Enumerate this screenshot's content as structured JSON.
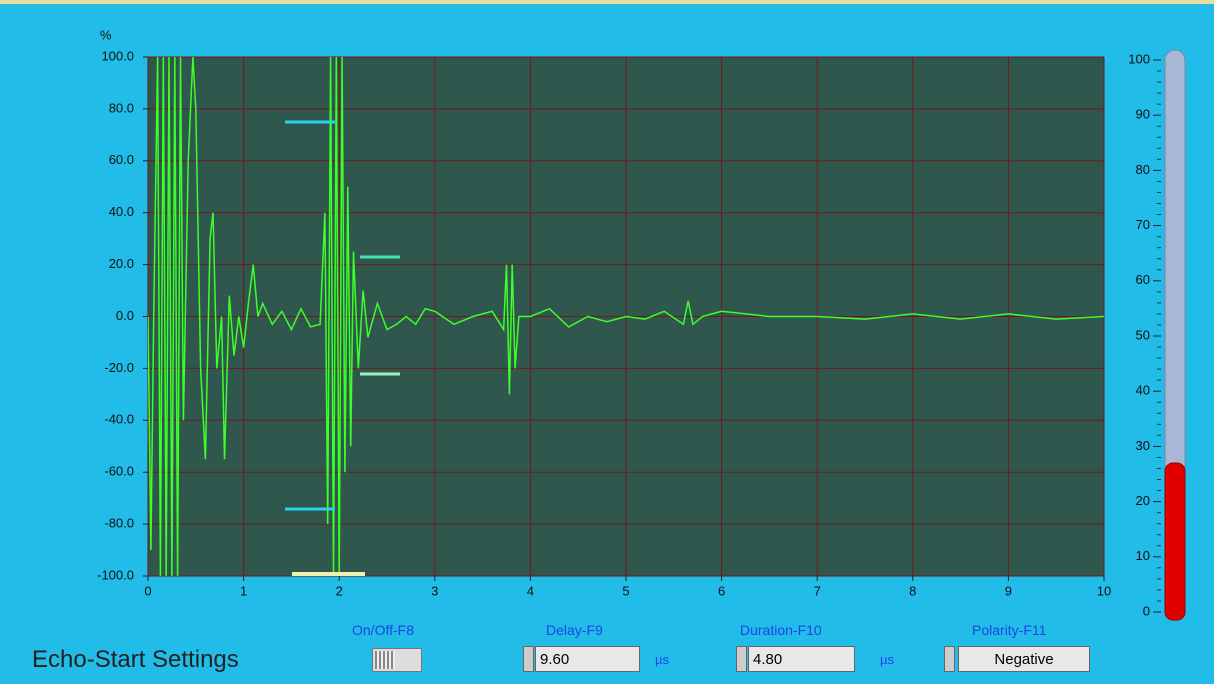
{
  "chart_data": [
    {
      "type": "line",
      "ylabel": "%",
      "x": [
        0,
        0.03,
        0.06,
        0.1,
        0.13,
        0.16,
        0.19,
        0.22,
        0.25,
        0.28,
        0.31,
        0.34,
        0.37,
        0.42,
        0.47,
        0.5,
        0.55,
        0.6,
        0.65,
        0.68,
        0.72,
        0.77,
        0.8,
        0.85,
        0.9,
        0.95,
        1.0,
        1.05,
        1.1,
        1.15,
        1.2,
        1.3,
        1.4,
        1.5,
        1.6,
        1.7,
        1.8,
        1.85,
        1.88,
        1.91,
        1.94,
        1.97,
        2.0,
        2.03,
        2.06,
        2.09,
        2.12,
        2.15,
        2.2,
        2.25,
        2.3,
        2.4,
        2.5,
        2.6,
        2.7,
        2.8,
        2.9,
        3.0,
        3.2,
        3.4,
        3.6,
        3.72,
        3.75,
        3.78,
        3.81,
        3.84,
        3.88,
        4.0,
        4.2,
        4.4,
        4.6,
        4.8,
        5.0,
        5.2,
        5.4,
        5.6,
        5.65,
        5.7,
        5.8,
        6.0,
        6.5,
        7.0,
        7.5,
        8.0,
        8.5,
        9.0,
        9.5,
        10.0
      ],
      "series": [
        {
          "color": "#3cff2a",
          "values": [
            0,
            -90,
            0,
            100,
            -100,
            100,
            -100,
            100,
            -100,
            100,
            -100,
            100,
            -40,
            60,
            100,
            80,
            -20,
            -55,
            30,
            40,
            -20,
            0,
            -55,
            8,
            -15,
            0,
            -12,
            5,
            20,
            0,
            5,
            -3,
            2,
            -5,
            3,
            -4,
            -3,
            40,
            -80,
            100,
            -100,
            100,
            -100,
            100,
            -60,
            50,
            -50,
            25,
            -20,
            10,
            -8,
            5,
            -5,
            -3,
            0,
            -3,
            3,
            2,
            -3,
            0,
            2,
            -5,
            20,
            -30,
            20,
            -20,
            0,
            0,
            3,
            -4,
            0,
            -2,
            0,
            -1,
            2,
            -3,
            6,
            -3,
            0,
            2,
            0,
            0,
            -1,
            1,
            -1,
            1,
            -1,
            0
          ]
        }
      ],
      "xlim": [
        0,
        10
      ],
      "xticks": [
        0,
        1,
        2,
        3,
        4,
        5,
        6,
        7,
        8,
        9,
        10
      ],
      "ylim": [
        -100,
        100
      ],
      "yticks": [
        {
          "value": -100,
          "label": "-100.0"
        },
        {
          "value": -80,
          "label": "-80.0"
        },
        {
          "value": -60,
          "label": "-60.0"
        },
        {
          "value": -40,
          "label": "-40.0"
        },
        {
          "value": -20,
          "label": "-20.0"
        },
        {
          "value": 0,
          "label": "0.0"
        },
        {
          "value": 20,
          "label": "20.0"
        },
        {
          "value": 40,
          "label": "40.0"
        },
        {
          "value": 60,
          "label": "60.0"
        },
        {
          "value": 80,
          "label": "80.0"
        },
        {
          "value": 100,
          "label": "100.0"
        }
      ],
      "grid": true
    },
    {
      "type": "gauge",
      "value": 27,
      "color": "#e00000",
      "ylim": [
        0,
        100
      ],
      "yticks": [
        0,
        10,
        20,
        30,
        40,
        50,
        60,
        70,
        80,
        90,
        100
      ]
    }
  ],
  "panel": {
    "title": "Echo-Start Settings",
    "on_off": {
      "label": "On/Off-F8"
    },
    "delay": {
      "label": "Delay-F9",
      "value": "9.60",
      "unit": "µs"
    },
    "duration": {
      "label": "Duration-F10",
      "value": "4.80",
      "unit": "µs"
    },
    "polarity": {
      "label": "Polarity-F11",
      "value": "Negative"
    }
  }
}
